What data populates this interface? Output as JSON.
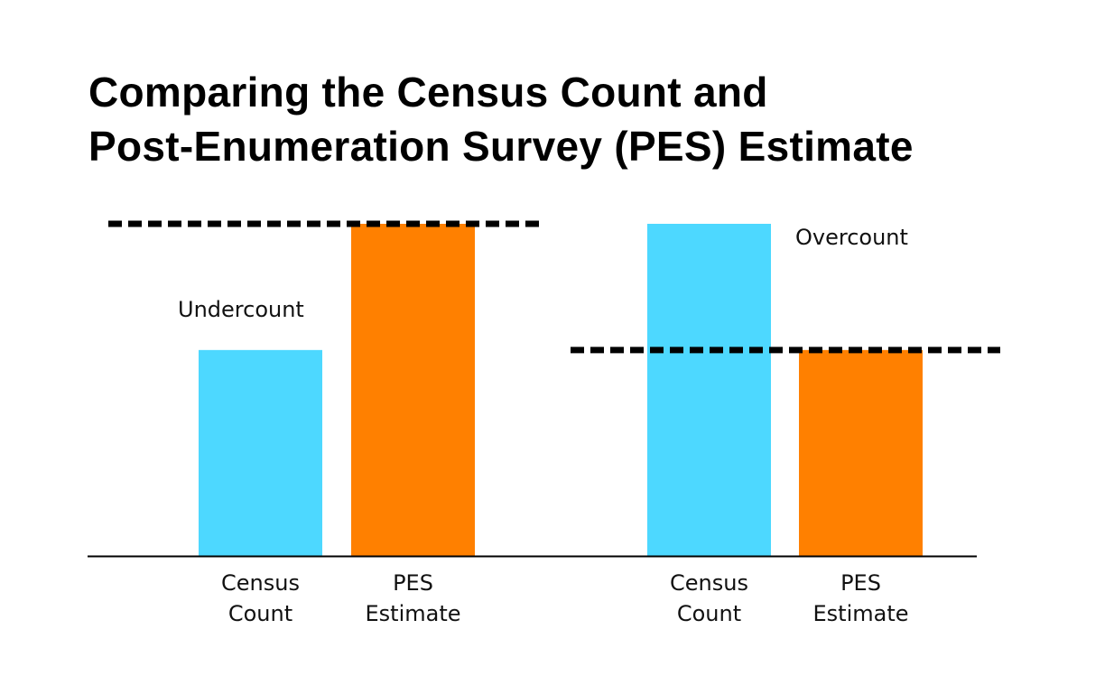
{
  "chart_data": {
    "type": "bar",
    "title": "Comparing the Census Count and Post-Enumeration Survey (PES) Estimate",
    "title_lines": [
      "Comparing the Census Count and",
      "Post-Enumeration Survey (PES) Estimate"
    ],
    "xlabel": "",
    "ylabel": "",
    "ylim": [
      0,
      100
    ],
    "grid": false,
    "colors": {
      "census": "#4DD8FF",
      "pes": "#FF8000"
    },
    "groups": [
      {
        "annotation": "Undercount",
        "reference_line_value": 100,
        "bars": [
          {
            "category": [
              "Census",
              "Count"
            ],
            "value": 62,
            "color": "#4DD8FF"
          },
          {
            "category": [
              "PES",
              "Estimate"
            ],
            "value": 100,
            "color": "#FF8000"
          }
        ]
      },
      {
        "annotation": "Overcount",
        "reference_line_value": 62,
        "bars": [
          {
            "category": [
              "Census",
              "Count"
            ],
            "value": 100,
            "color": "#4DD8FF"
          },
          {
            "category": [
              "PES",
              "Estimate"
            ],
            "value": 62,
            "color": "#FF8000"
          }
        ]
      }
    ]
  }
}
